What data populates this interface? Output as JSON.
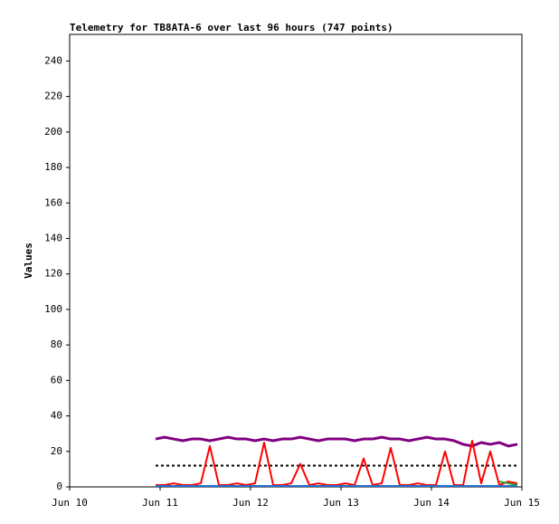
{
  "chart_data": {
    "type": "line",
    "title": "Telemetry for TB8ATA-6 over last 96 hours (747 points)",
    "ylabel": "Values",
    "xlim": [
      10,
      15
    ],
    "xticks": [
      {
        "value": 10,
        "label": "Jun 10"
      },
      {
        "value": 11,
        "label": "Jun 11"
      },
      {
        "value": 12,
        "label": "Jun 12"
      },
      {
        "value": 13,
        "label": "Jun 13"
      },
      {
        "value": 14,
        "label": "Jun 14"
      },
      {
        "value": 15,
        "label": "Jun 15"
      }
    ],
    "ylim": [
      0,
      255
    ],
    "yticks": [
      0,
      20,
      40,
      60,
      80,
      100,
      120,
      140,
      160,
      180,
      200,
      220,
      240
    ],
    "x": [
      10.95,
      11.05,
      11.15,
      11.25,
      11.35,
      11.45,
      11.55,
      11.65,
      11.75,
      11.85,
      11.95,
      12.05,
      12.15,
      12.25,
      12.35,
      12.45,
      12.55,
      12.65,
      12.75,
      12.85,
      12.95,
      13.05,
      13.15,
      13.25,
      13.35,
      13.45,
      13.55,
      13.65,
      13.75,
      13.85,
      13.95,
      14.05,
      14.15,
      14.25,
      14.35,
      14.45,
      14.55,
      14.65,
      14.75,
      14.85,
      14.95
    ],
    "series": [
      {
        "color": "#800080",
        "width": 3,
        "dashed": false,
        "values": [
          27,
          28,
          27,
          26,
          27,
          27,
          26,
          27,
          28,
          27,
          27,
          26,
          27,
          26,
          27,
          27,
          28,
          27,
          26,
          27,
          27,
          27,
          26,
          27,
          27,
          28,
          27,
          27,
          26,
          27,
          28,
          27,
          27,
          26,
          24,
          23,
          25,
          24,
          25,
          23,
          24
        ]
      },
      {
        "color": "#000000",
        "width": 2,
        "dashed": true,
        "values": [
          12,
          12,
          12,
          12,
          12,
          12,
          12,
          12,
          12,
          12,
          12,
          12,
          12,
          12,
          12,
          12,
          12,
          12,
          12,
          12,
          12,
          12,
          12,
          12,
          12,
          12,
          12,
          12,
          12,
          12,
          12,
          12,
          12,
          12,
          12,
          12,
          12,
          12,
          12,
          12,
          12
        ]
      },
      {
        "color": "#ff0000",
        "width": 2,
        "dashed": false,
        "values": [
          1,
          1,
          2,
          1,
          1,
          2,
          23,
          1,
          1,
          2,
          1,
          2,
          25,
          1,
          1,
          2,
          13,
          1,
          2,
          1,
          1,
          2,
          1,
          16,
          1,
          2,
          22,
          1,
          1,
          2,
          1,
          1,
          20,
          1,
          1,
          26,
          2,
          20,
          1,
          3,
          2
        ]
      },
      {
        "color": "#1f6fd0",
        "width": 2,
        "dashed": false,
        "values": [
          0.5,
          0.5,
          0.5,
          0.5,
          0.5,
          0.5,
          0.5,
          0.5,
          0.5,
          0.5,
          0.5,
          0.5,
          0.5,
          0.5,
          0.5,
          0.5,
          0.5,
          0.5,
          0.5,
          0.5,
          0.5,
          0.5,
          0.5,
          0.5,
          0.5,
          0.5,
          0.5,
          0.5,
          0.5,
          0.5,
          0.5,
          0.5,
          0.5,
          0.5,
          0.5,
          0.5,
          0.5,
          0.5,
          0.5,
          0.5,
          0.5
        ]
      },
      {
        "color": "#2ca02c",
        "width": 2,
        "dashed": false,
        "values": [
          null,
          null,
          null,
          null,
          null,
          null,
          null,
          null,
          null,
          null,
          null,
          null,
          null,
          null,
          null,
          null,
          null,
          null,
          null,
          null,
          null,
          null,
          null,
          null,
          null,
          null,
          null,
          null,
          null,
          null,
          null,
          null,
          null,
          null,
          null,
          null,
          null,
          null,
          3,
          2,
          1
        ]
      }
    ]
  }
}
